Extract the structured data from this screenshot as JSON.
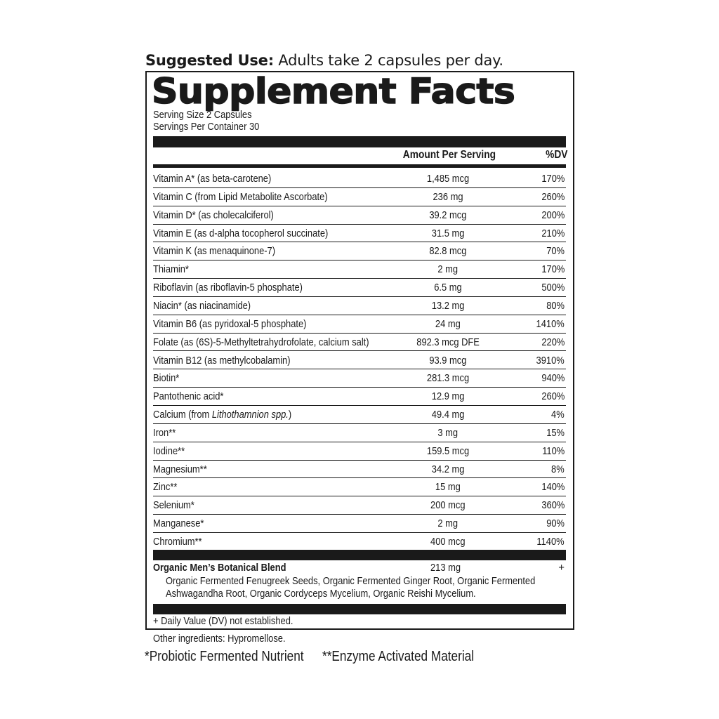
{
  "suggested_use": {
    "label": "Suggested Use:",
    "text": " Adults take 2 capsules per day."
  },
  "title": "Supplement Facts",
  "serving_size": "Serving Size 2 Capsules",
  "servings_per_container": "Servings Per Container 30",
  "columns": {
    "amount": "Amount Per Serving",
    "dv": "%DV"
  },
  "nutrients": [
    {
      "name": "Vitamin A* (as beta-carotene)",
      "amount": "1,485 mcg",
      "dv": "170%"
    },
    {
      "name": "Vitamin C (from Lipid Metabolite Ascorbate)",
      "amount": "236 mg",
      "dv": "260%"
    },
    {
      "name": "Vitamin D* (as cholecalciferol)",
      "amount": "39.2 mcg",
      "dv": "200%"
    },
    {
      "name": "Vitamin E (as d-alpha tocopherol succinate)",
      "amount": "31.5 mg",
      "dv": "210%"
    },
    {
      "name": "Vitamin K (as menaquinone-7)",
      "amount": "82.8 mcg",
      "dv": "70%"
    },
    {
      "name": "Thiamin*",
      "amount": "2 mg",
      "dv": "170%"
    },
    {
      "name": "Riboflavin (as riboflavin-5 phosphate)",
      "amount": "6.5 mg",
      "dv": "500%"
    },
    {
      "name": "Niacin* (as niacinamide)",
      "amount": "13.2 mg",
      "dv": "80%"
    },
    {
      "name": "Vitamin B6 (as pyridoxal-5 phosphate)",
      "amount": "24 mg",
      "dv": "1410%"
    },
    {
      "name": "Folate (as (6S)-5-Methyltetrahydrofolate, calcium salt)",
      "amount": "892.3 mcg DFE",
      "dv": "220%"
    },
    {
      "name": "Vitamin B12 (as methylcobalamin)",
      "amount": "93.9 mcg",
      "dv": "3910%"
    },
    {
      "name": "Biotin*",
      "amount": "281.3 mcg",
      "dv": "940%"
    },
    {
      "name": "Pantothenic acid*",
      "amount": "12.9 mg",
      "dv": "260%"
    },
    {
      "name": "Calcium (from ",
      "name_italic": "Lithothamnion spp.",
      "name_end": ")",
      "amount": "49.4 mg",
      "dv": "4%"
    },
    {
      "name": "Iron**",
      "amount": "3 mg",
      "dv": "15%"
    },
    {
      "name": "Iodine**",
      "amount": "159.5 mcg",
      "dv": "110%"
    },
    {
      "name": "Magnesium**",
      "amount": "34.2 mg",
      "dv": "8%"
    },
    {
      "name": "Zinc**",
      "amount": "15 mg",
      "dv": "140%"
    },
    {
      "name": "Selenium*",
      "amount": "200 mcg",
      "dv": "360%"
    },
    {
      "name": "Manganese*",
      "amount": "2 mg",
      "dv": "90%"
    },
    {
      "name": "Chromium**",
      "amount": "400 mcg",
      "dv": "1140%"
    }
  ],
  "blend": {
    "name": "Organic Men’s Botanical Blend",
    "amount": "213 mg",
    "dv": "+",
    "line1": "Organic Fermented Fenugreek Seeds, Organic Fermented Ginger Root, Organic Fermented",
    "line2": "Ashwagandha Root, Organic Cordyceps Mycelium, Organic Reishi Mycelium."
  },
  "dv_note": "+ Daily Value (DV) not established.",
  "other_ingredients": "Other ingredients: Hypromellose.",
  "footnote_probiotic": "*Probiotic Fermented Nutrient",
  "footnote_enzyme": "**Enzyme Activated Material"
}
